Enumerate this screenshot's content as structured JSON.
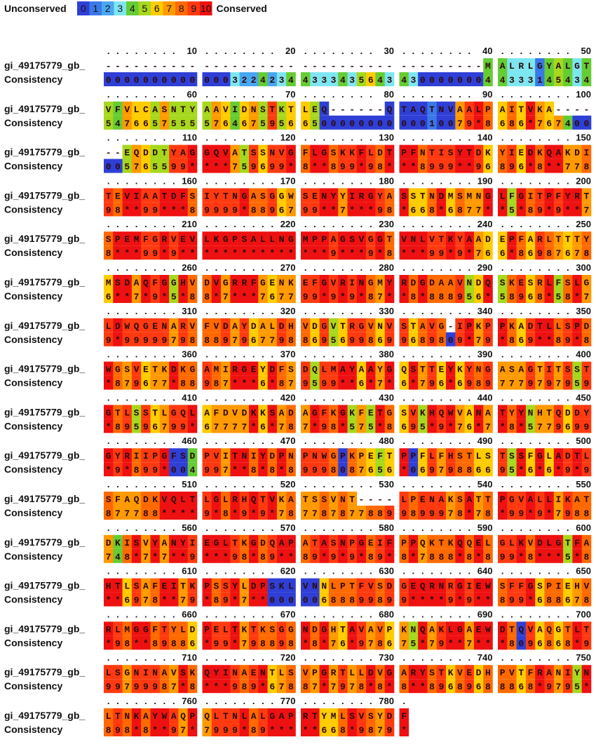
{
  "legend": {
    "low": "Unconserved",
    "high": "Conserved",
    "levels": [
      "0",
      "1",
      "2",
      "3",
      "4",
      "5",
      "6",
      "7",
      "8",
      "9",
      "10"
    ],
    "colors": [
      "#2f3fd6",
      "#3a78e8",
      "#49a6f0",
      "#7ee6f0",
      "#66cc33",
      "#a6d81e",
      "#ffcc00",
      "#ff9a00",
      "#ff6a00",
      "#ff3a10",
      "#ee1111"
    ]
  },
  "alignment": {
    "sequence_name": "gi_49175779_gb_",
    "consistency_label": "Consistency",
    "blocks": [
      {
        "ruler": [
          10,
          20,
          30,
          40,
          50
        ],
        "sequence": [
          "----------",
          "----------",
          "----------",
          "---------M",
          "ALRLGYALGT"
        ],
        "consistency": [
          "0000000000",
          "0003224234",
          "4333435643",
          "4300000004",
          "4333145434"
        ]
      },
      {
        "ruler": [
          60,
          70,
          80,
          90,
          100
        ],
        "sequence": [
          "VFVLCASNTY",
          "AAVIDNSTKT",
          "LEQ------Q",
          "TAQTNVAALP",
          "AITVKA----"
        ],
        "consistency": [
          "5476657555",
          "5764675956",
          "6500000000",
          "00010079*8",
          "686*767400"
        ]
      },
      {
        "ruler": [
          110,
          120,
          130,
          140,
          150
        ],
        "sequence": [
          "--EQDDTYAG",
          "GQVATSSNVG",
          "FLGSKKFLDT",
          "PFNTISYTDK",
          "YIEDKQAKDI"
        ],
        "consistency": [
          "005765599*",
          "***759699*",
          "8**899*98*",
          "**8999**96",
          "896*8**778"
        ]
      },
      {
        "ruler": [
          160,
          170,
          180,
          190,
          200
        ],
        "sequence": [
          "TEVIAATDFS",
          "IYTNGASGGW",
          "SENYYIRGYA",
          "SSTNDMSMNG",
          "LFGITPFYRT"
        ],
        "consistency": [
          "98**99***8",
          "9999*88967",
          "99**7***98",
          "*668*6877*",
          "*5*89*9**7"
        ]
      },
      {
        "ruler": [
          210,
          220,
          230,
          240,
          250
        ],
        "sequence": [
          "SPEMFGRVEV",
          "LKGPSALLNG",
          "MPPAGSVGGT",
          "VNLVTKYAAD",
          "EPFARLTTTY"
        ],
        "consistency": [
          "8***99*9**",
          "**********",
          "***9***9*8",
          "***99*9*76",
          "6*86987678"
        ]
      },
      {
        "ruler": [
          260,
          270,
          280,
          290,
          300
        ],
        "sequence": [
          "MSDAQFGGHV",
          "DVGRRFGENK",
          "EFGVRINGMY",
          "RDGDAAVNDQ",
          "SKESRLFSLG"
        ],
        "consistency": [
          "6**7*9*5*8",
          "8*7***7677",
          "99*9*9*87*",
          "*8*888956*",
          "58968*58*7"
        ]
      },
      {
        "ruler": [
          310,
          320,
          330,
          340,
          350
        ],
        "sequence": [
          "LDWQGENARV",
          "FVDAYDALDH",
          "VDGVTRGVNV",
          "STAVG-IPKP",
          "PKADTLLSPD"
        ],
        "consistency": [
          "9*99999798",
          "8897967798",
          "8695699869",
          "9689809*79",
          "*869**89*8"
        ]
      },
      {
        "ruler": [
          360,
          370,
          380,
          390,
          400
        ],
        "sequence": [
          "WGSVETKDKG",
          "AMIRGEYDFS",
          "DQLMAYAAYG",
          "QSTTEYKYNG",
          "ASAGTITSST"
        ],
        "consistency": [
          "*879677*88",
          "987***6*87",
          "9599**6*7*",
          "6*796*6989",
          "7779797959"
        ]
      },
      {
        "ruler": [
          410,
          420,
          430,
          440,
          450
        ],
        "sequence": [
          "GTLSSTLGQL",
          "AFDVDKKSAD",
          "AGFKGKFETG",
          "SVKHQWVANA",
          "TYYNHTQDDY"
        ],
        "consistency": [
          "*89596799*",
          "67777*6*78",
          "7*98*575*8",
          "695*9*76*7",
          "*8*5779699"
        ]
      },
      {
        "ruler": [
          460,
          470,
          480,
          490,
          500
        ],
        "sequence": [
          "GYRIIPGFSD",
          "PVITNIYDPN",
          "PNWGPKPEFT",
          "PPFLFHSTLS",
          "TSSFGLADTL"
        ],
        "consistency": [
          "*9*899*004",
          "997**8*8*8",
          "9998087656",
          "*069798866",
          "95*6*6*9*9"
        ]
      },
      {
        "ruler": [
          510,
          520,
          530,
          540,
          550
        ],
        "sequence": [
          "SFAQDKVQLT",
          "LGLRHQTVKA",
          "TSSVNT----",
          "LPENAKSATT",
          "PGVALLIKAT"
        ],
        "consistency": [
          "877788****",
          "9*8*9*9*78",
          "7787877889",
          "9899978*78",
          "*99*9*7988"
        ]
      },
      {
        "ruler": [
          560,
          570,
          580,
          590,
          600
        ],
        "sequence": [
          "DKISVYANYI",
          "EGLTKGDQAP",
          "ATASNPGEIF",
          "PPQKTKQQEL",
          "GLKVDLGTFA"
        ],
        "consistency": [
          "748*7*7**9",
          "***98*89**",
          "89*9*9*89*",
          "8*7888*8*8",
          "99*8***5*8"
        ]
      },
      {
        "ruler": [
          610,
          620,
          630,
          640,
          650
        ],
        "sequence": [
          "HTLSAFEITK",
          "PSSYLDPSKL",
          "VNNLPTFVSD",
          "GEQRNRGIEW",
          "SFFGSPIEHV"
        ],
        "consistency": [
          "**6978**79",
          "*89*7**000",
          "0068889989",
          "9****9*9**",
          "899*688678"
        ]
      },
      {
        "ruler": [
          660,
          670,
          680,
          690,
          700
        ],
        "sequence": [
          "RLMGGFTYLD",
          "PELTKTKSGG",
          "NDGHTAVAVP",
          "KNQAKLGAEW",
          "DTQVAQGTLT"
        ],
        "consistency": [
          "*98**89886",
          "*99*798898",
          "*8*76*9786",
          "75*79**7**",
          "*8096868*9"
        ]
      },
      {
        "ruler": [
          710,
          720,
          730,
          740,
          750
        ],
        "sequence": [
          "LSGNINAVSK",
          "QYINAENTLS",
          "VPGRTLLDVG",
          "ARYSTKVEDH",
          "PVTFRANIYN"
        ],
        "consistency": [
          "99799987*8",
          "***989*678",
          "87*7978*8*",
          "8**8968968",
          "8868*9795*"
        ]
      },
      {
        "ruler": [
          760,
          770,
          780
        ],
        "sequence": [
          "LTNKAYWAQP",
          "QLTNLALGAP",
          "RTYMLSVSYD",
          "F"
        ],
        "consistency": [
          "898*8**97*",
          "7999*89***",
          "**668*9879",
          "*"
        ]
      }
    ]
  }
}
